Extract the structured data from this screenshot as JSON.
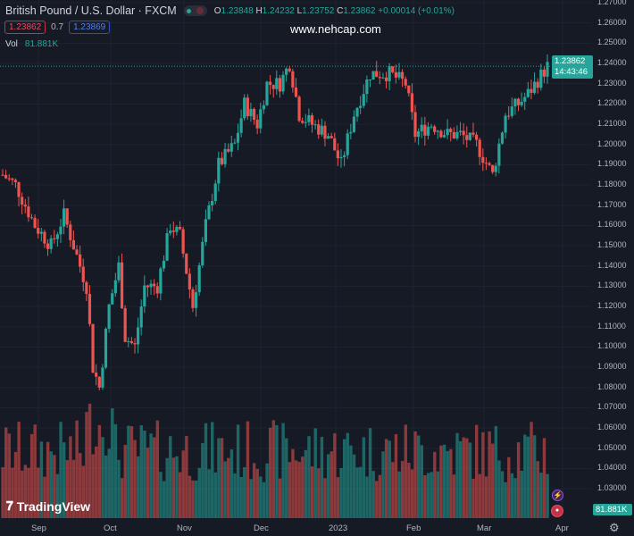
{
  "header": {
    "title": "British Pound / U.S. Dollar · FXCM",
    "ohlc": {
      "o_label": "O",
      "o": "1.23848",
      "h_label": "H",
      "h": "1.24232",
      "l_label": "L",
      "l": "1.23752",
      "c_label": "C",
      "c": "1.23862",
      "change": "+0.00014 (+0.01%)"
    },
    "bid": "1.23862",
    "spread": "0.7",
    "ask": "1.23869"
  },
  "volume": {
    "label": "Vol",
    "value": "81.881K"
  },
  "watermark": "www.nehcap.com",
  "logo": "TradingView",
  "price_axis": [
    "1.27000",
    "1.26000",
    "1.25000",
    "1.24000",
    "1.23000",
    "1.22000",
    "1.21000",
    "1.20000",
    "1.19000",
    "1.18000",
    "1.17000",
    "1.16000",
    "1.15000",
    "1.14000",
    "1.13000",
    "1.12000",
    "1.11000",
    "1.10000",
    "1.09000",
    "1.08000",
    "1.07000",
    "1.06000",
    "1.05000",
    "1.04000",
    "1.03000"
  ],
  "last_price": {
    "price": "1.23862",
    "countdown": "14:43:46"
  },
  "time_axis": [
    "Sep",
    "Oct",
    "Nov",
    "Dec",
    "2023",
    "Feb",
    "Mar",
    "Apr"
  ],
  "colors": {
    "up": "#26a69a",
    "down": "#ef5350",
    "bg": "#161a25"
  },
  "chart_data": {
    "type": "candlestick",
    "symbol": "GBPUSD",
    "price_range": [
      1.03,
      1.27
    ],
    "close_path": [
      [
        0,
        1.185
      ],
      [
        4,
        1.18
      ],
      [
        10,
        1.16
      ],
      [
        15,
        1.15
      ],
      [
        19,
        1.165
      ],
      [
        23,
        1.145
      ],
      [
        26,
        1.13
      ],
      [
        28,
        1.09
      ],
      [
        30,
        1.08
      ],
      [
        33,
        1.12
      ],
      [
        36,
        1.14
      ],
      [
        38,
        1.105
      ],
      [
        41,
        1.1
      ],
      [
        44,
        1.13
      ],
      [
        48,
        1.13
      ],
      [
        52,
        1.16
      ],
      [
        55,
        1.155
      ],
      [
        59,
        1.12
      ],
      [
        63,
        1.16
      ],
      [
        67,
        1.19
      ],
      [
        72,
        1.2
      ],
      [
        75,
        1.22
      ],
      [
        79,
        1.21
      ],
      [
        82,
        1.23
      ],
      [
        86,
        1.23
      ],
      [
        89,
        1.24
      ],
      [
        92,
        1.215
      ],
      [
        96,
        1.21
      ],
      [
        101,
        1.205
      ],
      [
        105,
        1.19
      ],
      [
        109,
        1.215
      ],
      [
        114,
        1.235
      ],
      [
        120,
        1.235
      ],
      [
        125,
        1.23
      ],
      [
        128,
        1.205
      ],
      [
        133,
        1.21
      ],
      [
        138,
        1.205
      ],
      [
        142,
        1.205
      ],
      [
        147,
        1.2
      ],
      [
        152,
        1.185
      ],
      [
        156,
        1.215
      ],
      [
        160,
        1.22
      ],
      [
        163,
        1.225
      ],
      [
        169,
        1.2386
      ]
    ]
  }
}
